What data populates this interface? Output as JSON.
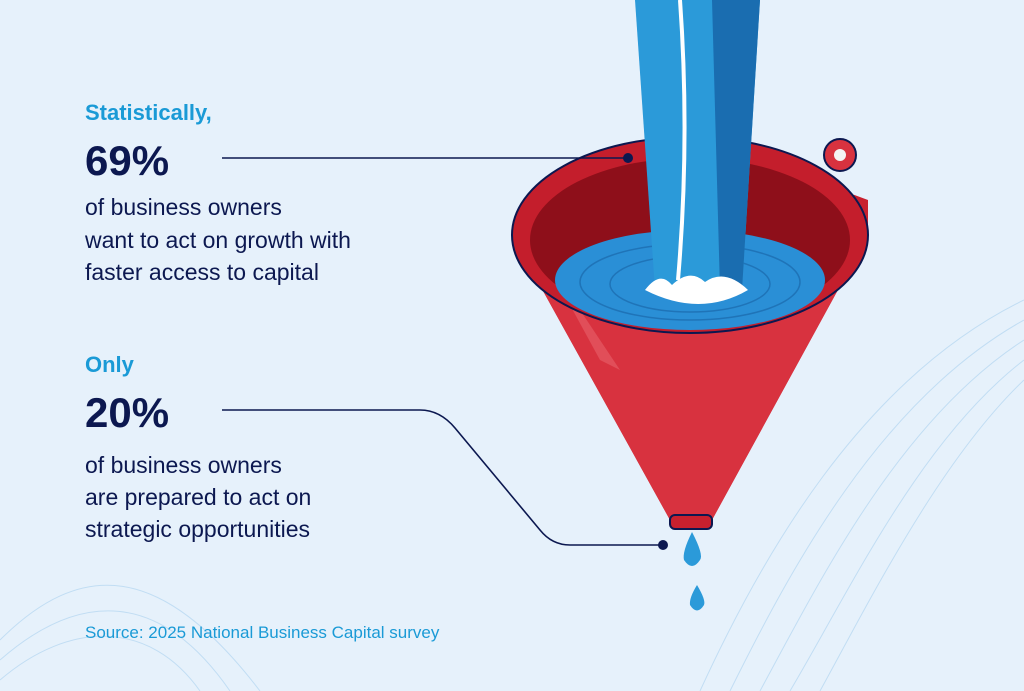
{
  "stats": [
    {
      "lead": "Statistically,",
      "figure": "69%",
      "lines": [
        "of business owners",
        "want to act on growth with",
        "faster access to capital"
      ]
    },
    {
      "lead": "Only",
      "figure": "20%",
      "lines": [
        "of business owners",
        "are prepared to act on",
        "strategic opportunities"
      ]
    }
  ],
  "source": "Source: 2025 National Business Capital survey"
}
